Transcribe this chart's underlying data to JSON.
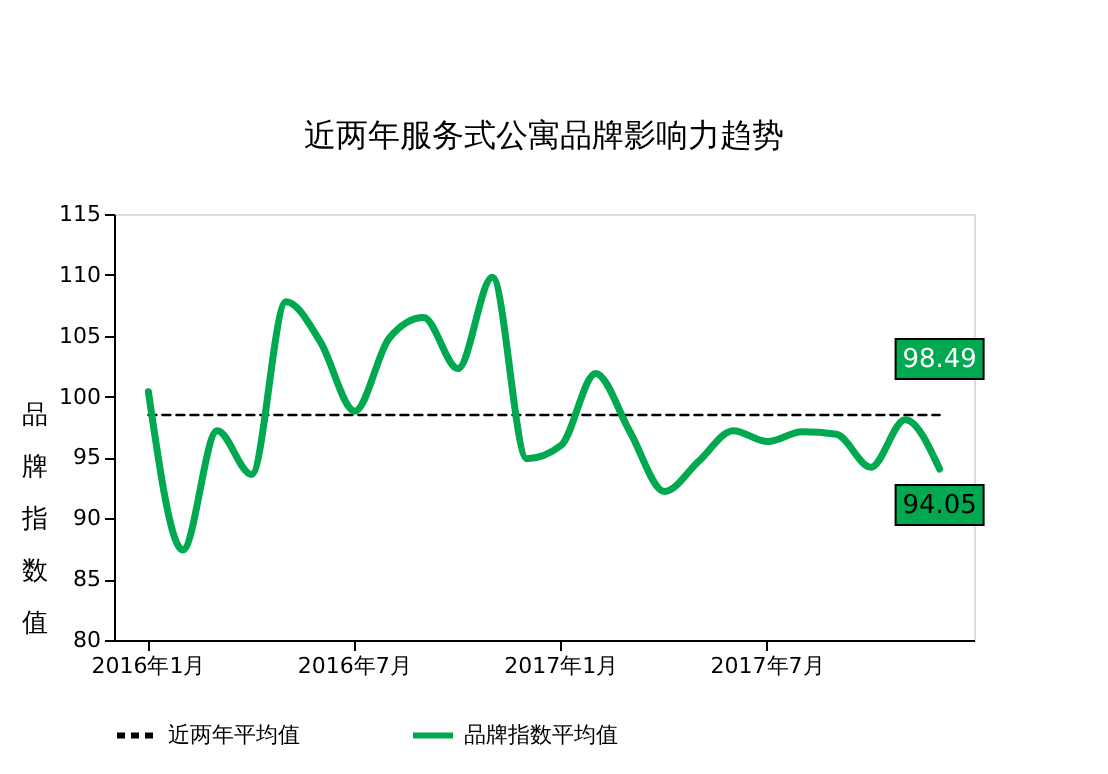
{
  "chart_data": {
    "type": "line",
    "title": "近两年服务式公寓品牌影响力趋势",
    "ylabel": "品牌指数值",
    "categories": [
      "2016年1月",
      null,
      null,
      null,
      null,
      null,
      "2016年7月",
      null,
      null,
      null,
      null,
      null,
      "2017年1月",
      null,
      null,
      null,
      null,
      null,
      "2017年7月",
      null,
      null,
      null,
      null,
      null
    ],
    "series": [
      {
        "name": "近两年平均值",
        "color": "#000000",
        "line_style": "dashed",
        "values": [
          98.49,
          98.49,
          98.49,
          98.49,
          98.49,
          98.49,
          98.49,
          98.49,
          98.49,
          98.49,
          98.49,
          98.49,
          98.49,
          98.49,
          98.49,
          98.49,
          98.49,
          98.49,
          98.49,
          98.49,
          98.49,
          98.49,
          98.49,
          98.49
        ]
      },
      {
        "name": "品牌指数平均值",
        "color": "#00a84f",
        "line_style": "solid",
        "values": [
          100.4,
          87.4,
          97.2,
          93.6,
          107.8,
          104.5,
          98.8,
          104.8,
          106.5,
          102.3,
          109.8,
          94.9,
          96.0,
          101.9,
          97.1,
          92.2,
          94.7,
          97.2,
          96.3,
          97.1,
          96.9,
          94.2,
          98.1,
          94.05
        ],
        "value_labels": [
          null,
          null,
          null,
          null,
          null,
          null,
          null,
          null,
          null,
          null,
          null,
          null,
          null,
          null,
          null,
          null,
          null,
          null,
          null,
          null,
          null,
          null,
          null,
          "94.05"
        ]
      }
    ],
    "annotations": [
      "98.49"
    ],
    "ylim": [
      80,
      115
    ],
    "yticks": [
      80,
      85,
      90,
      95,
      100,
      105,
      110,
      115
    ],
    "grid": false,
    "legend": "bottom",
    "marker": "none"
  }
}
